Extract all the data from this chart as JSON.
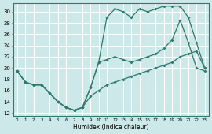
{
  "xlabel": "Humidex (Indice chaleur)",
  "bg_color": "#cce8e8",
  "grid_color": "#ffffff",
  "line_color": "#2d7a6e",
  "xlim": [
    -0.5,
    23.5
  ],
  "ylim": [
    11.5,
    31.5
  ],
  "xticks": [
    0,
    1,
    2,
    3,
    4,
    5,
    6,
    7,
    8,
    9,
    10,
    11,
    12,
    13,
    14,
    15,
    16,
    17,
    18,
    19,
    20,
    21,
    22,
    23
  ],
  "yticks": [
    12,
    14,
    16,
    18,
    20,
    22,
    24,
    26,
    28,
    30
  ],
  "line1_x": [
    0,
    1,
    2,
    3,
    4,
    5,
    6,
    7,
    8,
    9,
    10,
    11,
    12,
    13,
    14,
    15,
    16,
    17,
    18,
    19,
    20,
    21,
    22,
    23
  ],
  "line1_y": [
    19.5,
    17.5,
    17,
    17,
    15.5,
    14,
    13,
    12.5,
    13,
    16.5,
    21,
    29,
    30.5,
    30,
    29,
    30.5,
    30,
    30.5,
    31,
    31,
    31,
    29,
    24.5,
    20
  ],
  "line2_x": [
    0,
    1,
    2,
    3,
    4,
    5,
    6,
    7,
    8,
    9,
    10,
    11,
    12,
    13,
    14,
    15,
    16,
    17,
    18,
    19,
    20,
    21,
    22,
    23
  ],
  "line2_y": [
    19.5,
    17.5,
    17,
    17,
    15.5,
    14,
    13,
    12.5,
    13,
    16.5,
    21,
    21.5,
    22,
    21.5,
    21,
    21.5,
    22,
    22.5,
    23.5,
    25,
    28.5,
    24.5,
    20,
    19.5
  ],
  "line3_x": [
    0,
    1,
    2,
    3,
    4,
    5,
    6,
    7,
    8,
    9,
    10,
    11,
    12,
    13,
    14,
    15,
    16,
    17,
    18,
    19,
    20,
    21,
    22,
    23
  ],
  "line3_y": [
    19.5,
    17.5,
    17,
    17,
    15.5,
    14,
    13,
    12.5,
    13,
    15,
    16,
    17,
    17.5,
    18,
    18.5,
    19,
    19.5,
    20,
    20.5,
    21,
    22,
    22.5,
    23,
    20
  ]
}
